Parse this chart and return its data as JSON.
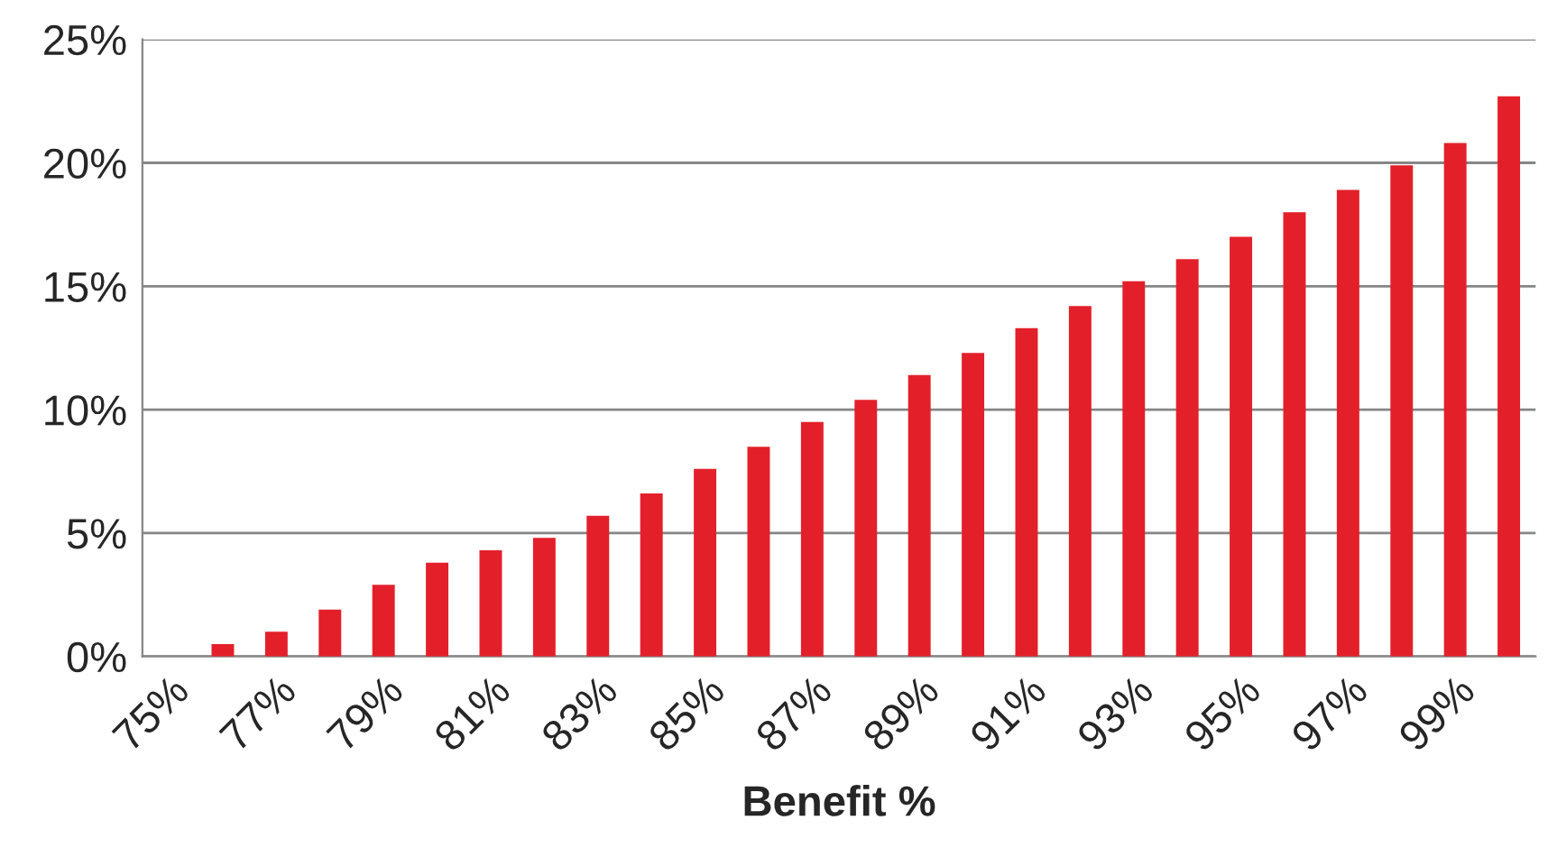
{
  "chart_data": {
    "type": "bar",
    "xlabel": "Benefit %",
    "categories": [
      "75%",
      null,
      "77%",
      null,
      "79%",
      null,
      "81%",
      null,
      "83%",
      null,
      "85%",
      null,
      "87%",
      null,
      "89%",
      null,
      "91%",
      null,
      "93%",
      null,
      "95%",
      null,
      "97%",
      null,
      "99%",
      null
    ],
    "values": [
      0,
      0.5,
      1.0,
      1.9,
      2.9,
      3.8,
      4.3,
      4.8,
      5.7,
      6.6,
      7.6,
      8.5,
      9.5,
      10.4,
      11.4,
      12.3,
      13.3,
      14.2,
      15.2,
      16.1,
      17.0,
      18.0,
      18.9,
      19.9,
      20.8,
      22.7
    ],
    "color": "#e3202a",
    "ylim": [
      0,
      25
    ],
    "yticks": [
      {
        "value": 0,
        "label": "0%"
      },
      {
        "value": 5,
        "label": "5%"
      },
      {
        "value": 10,
        "label": "10%"
      },
      {
        "value": 15,
        "label": "15%"
      },
      {
        "value": 20,
        "label": "20%"
      },
      {
        "value": 25,
        "label": "25%"
      }
    ],
    "grid": "y",
    "legend": false
  }
}
